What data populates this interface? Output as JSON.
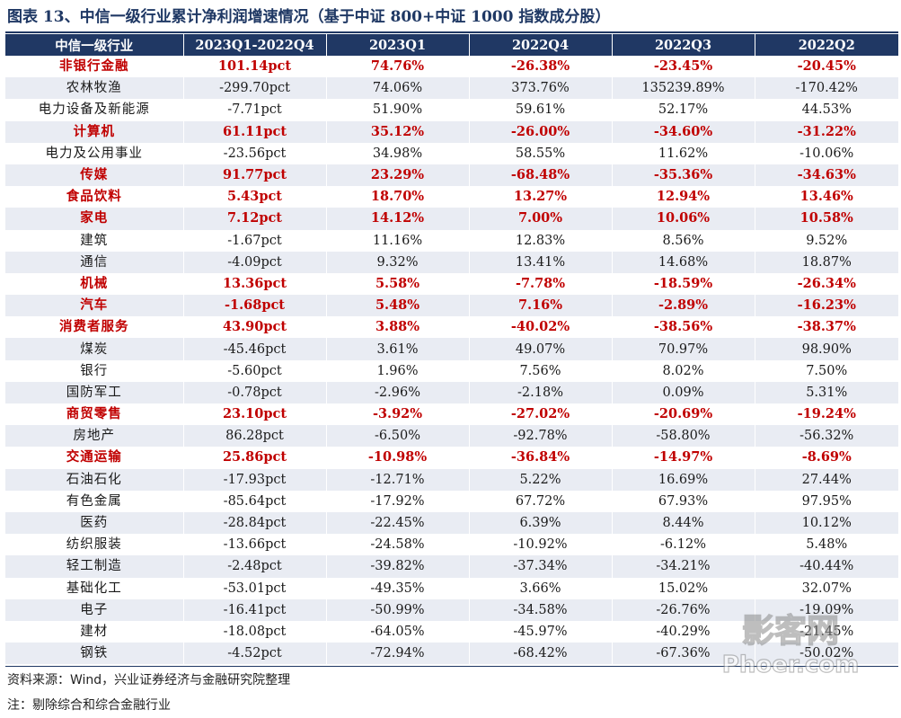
{
  "title": "图表 13、中信一级行业累计净利润增速情况（基于中证 800+中证 1000 指数成分股）",
  "headers": [
    "中信一级行业",
    "2023Q1-2022Q4",
    "2023Q1",
    "2022Q4",
    "2022Q3",
    "2022Q2"
  ],
  "rows": [
    [
      "非银行金融",
      "101.14pct",
      "74.76%",
      "-26.38%",
      "-23.45%",
      "-20.45%"
    ],
    [
      "农林牧渔",
      "-299.70pct",
      "74.06%",
      "373.76%",
      "135239.89%",
      "-170.42%"
    ],
    [
      "电力设备及新能源",
      "-7.71pct",
      "51.90%",
      "59.61%",
      "52.17%",
      "44.53%"
    ],
    [
      "计算机",
      "61.11pct",
      "35.12%",
      "-26.00%",
      "-34.60%",
      "-31.22%"
    ],
    [
      "电力及公用事业",
      "-23.56pct",
      "34.98%",
      "58.55%",
      "11.62%",
      "-10.06%"
    ],
    [
      "传媒",
      "91.77pct",
      "23.29%",
      "-68.48%",
      "-35.36%",
      "-34.63%"
    ],
    [
      "食品饮料",
      "5.43pct",
      "18.70%",
      "13.27%",
      "12.94%",
      "13.46%"
    ],
    [
      "家电",
      "7.12pct",
      "14.12%",
      "7.00%",
      "10.06%",
      "10.58%"
    ],
    [
      "建筑",
      "-1.67pct",
      "11.16%",
      "12.83%",
      "8.56%",
      "9.52%"
    ],
    [
      "通信",
      "-4.09pct",
      "9.32%",
      "13.41%",
      "14.68%",
      "18.87%"
    ],
    [
      "机械",
      "13.36pct",
      "5.58%",
      "-7.78%",
      "-18.59%",
      "-26.34%"
    ],
    [
      "汽车",
      "-1.68pct",
      "5.48%",
      "7.16%",
      "-2.89%",
      "-16.23%"
    ],
    [
      "消费者服务",
      "43.90pct",
      "3.88%",
      "-40.02%",
      "-38.56%",
      "-38.37%"
    ],
    [
      "煤炭",
      "-45.46pct",
      "3.61%",
      "49.07%",
      "70.97%",
      "98.90%"
    ],
    [
      "银行",
      "-5.60pct",
      "1.96%",
      "7.56%",
      "8.02%",
      "7.50%"
    ],
    [
      "国防军工",
      "-0.78pct",
      "-2.96%",
      "-2.18%",
      "0.09%",
      "5.31%"
    ],
    [
      "商贸零售",
      "23.10pct",
      "-3.92%",
      "-27.02%",
      "-20.69%",
      "-19.24%"
    ],
    [
      "房地产",
      "86.28pct",
      "-6.50%",
      "-92.78%",
      "-58.80%",
      "-56.32%"
    ],
    [
      "交通运输",
      "25.86pct",
      "-10.98%",
      "-36.84%",
      "-14.97%",
      "-8.69%"
    ],
    [
      "石油石化",
      "-17.93pct",
      "-12.71%",
      "5.22%",
      "16.69%",
      "27.44%"
    ],
    [
      "有色金属",
      "-85.64pct",
      "-17.92%",
      "67.72%",
      "67.93%",
      "97.95%"
    ],
    [
      "医药",
      "-28.84pct",
      "-22.45%",
      "6.39%",
      "8.44%",
      "10.12%"
    ],
    [
      "纺织服装",
      "-13.66pct",
      "-24.58%",
      "-10.92%",
      "-6.12%",
      "5.48%"
    ],
    [
      "轻工制造",
      "-2.48pct",
      "-39.82%",
      "-37.34%",
      "-34.21%",
      "-40.44%"
    ],
    [
      "基础化工",
      "-53.01pct",
      "-49.35%",
      "3.66%",
      "15.02%",
      "32.07%"
    ],
    [
      "电子",
      "-16.41pct",
      "-50.99%",
      "-34.58%",
      "-26.76%",
      "-19.09%"
    ],
    [
      "建材",
      "-18.08pct",
      "-64.05%",
      "-45.97%",
      "-40.29%",
      "-21.45%"
    ],
    [
      "钢铁",
      "-4.52pct",
      "-72.94%",
      "-68.42%",
      "-67.36%",
      "-50.02%"
    ]
  ],
  "highlighted_rows": [
    "非银行金融",
    "计算机",
    "传媒",
    "食品饮料",
    "家电",
    "机械",
    "汽车",
    "消费者服务",
    "商贸零售",
    "交通运输"
  ],
  "colors": {
    "header_bg": "#203864",
    "highlight_text": "#c00000",
    "alt_row_bg": "#e9ecf3",
    "title_color": "#1f3864"
  },
  "source": "资料来源：Wind，兴业证券经济与金融研究院整理",
  "note": "注：剔除综合和综合金融行业",
  "watermark": {
    "line1": "影客网",
    "line2": "Phoer.com"
  }
}
